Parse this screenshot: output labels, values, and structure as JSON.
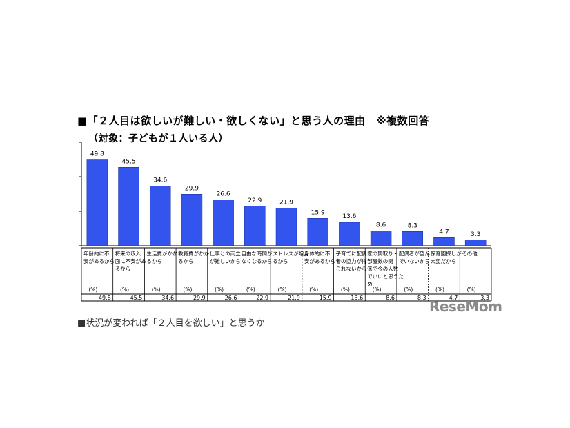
{
  "header": {
    "title": "■「２人目は欲しいが難しい・欲しくない」と思う人の理由　※複数回答",
    "subtitle": "（対象：子どもが１人いる人）"
  },
  "watermark": "ReseMom",
  "cutoff_text": "■状況が変われば「２人目を欲しい」と思うか",
  "chart_data": {
    "type": "bar",
    "unit": "(%)",
    "ylim": [
      0,
      60
    ],
    "bar_color": "#3355ee",
    "categories": [
      [
        "年齢的に不",
        "安があるから"
      ],
      [
        "将来の収入",
        "面に不安があ",
        "るから"
      ],
      [
        "生活費がかか",
        "るから"
      ],
      [
        "教育費がかか",
        "るから"
      ],
      [
        "仕事との両立",
        "が難しいから"
      ],
      [
        "自由な時間が",
        "なくなるから"
      ],
      [
        "ストレスが増え",
        "るから"
      ],
      [
        "身体的に不",
        "安があるから"
      ],
      [
        "子育てに配偶",
        "者の協力が得",
        "られないから"
      ],
      [
        "家の間取り・",
        "部屋数の関",
        "係で今の人数",
        "でいいと思うた",
        "め"
      ],
      [
        "配偶者が望ん",
        "でいないから"
      ],
      [
        "保育園探しが",
        "大変だから"
      ],
      [
        "その他"
      ]
    ],
    "values": [
      49.8,
      45.5,
      34.6,
      29.9,
      26.6,
      22.9,
      21.9,
      15.9,
      13.6,
      8.6,
      8.3,
      4.7,
      3.3
    ],
    "value_labels": [
      "49.8",
      "45.5",
      "34.6",
      "29.9",
      "26.6",
      "22.9",
      "21.9",
      "15.9",
      "13.6",
      "8.6",
      "8.3",
      "4.7",
      "3.3"
    ]
  }
}
